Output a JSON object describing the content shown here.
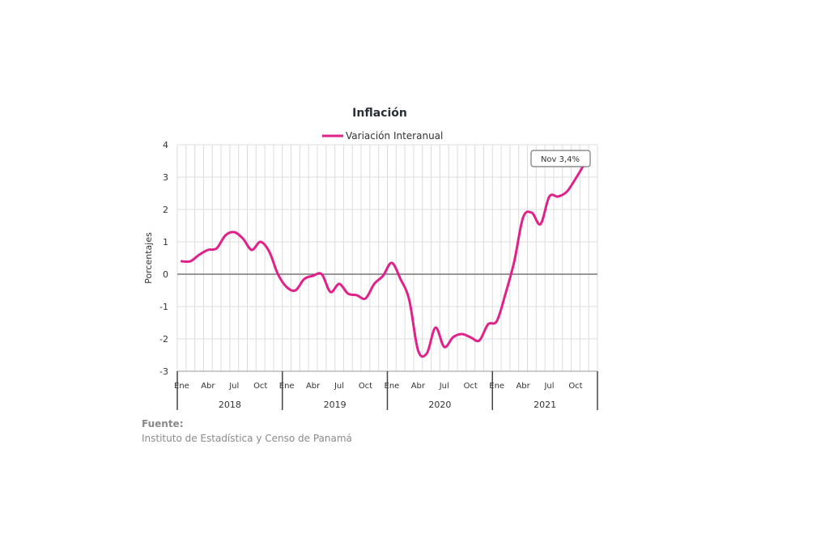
{
  "chart_data": {
    "type": "line",
    "title": "Inflación",
    "ylabel": "Porcentajes",
    "ylim": [
      -3,
      4
    ],
    "yticks": [
      4,
      3,
      2,
      1,
      0,
      -1,
      -2,
      -3
    ],
    "grid": true,
    "legend_position": "top-center",
    "x_month_labels": [
      "Ene",
      "Abr",
      "Jul",
      "Oct"
    ],
    "years": [
      "2018",
      "2019",
      "2020",
      "2021"
    ],
    "series": [
      {
        "name": "Variación Interanual",
        "color": "#e0218a",
        "x": [
          "2018-01",
          "2018-02",
          "2018-03",
          "2018-04",
          "2018-05",
          "2018-06",
          "2018-07",
          "2018-08",
          "2018-09",
          "2018-10",
          "2018-11",
          "2018-12",
          "2019-01",
          "2019-02",
          "2019-03",
          "2019-04",
          "2019-05",
          "2019-06",
          "2019-07",
          "2019-08",
          "2019-09",
          "2019-10",
          "2019-11",
          "2019-12",
          "2020-01",
          "2020-02",
          "2020-03",
          "2020-04",
          "2020-05",
          "2020-06",
          "2020-07",
          "2020-08",
          "2020-09",
          "2020-10",
          "2020-11",
          "2020-12",
          "2021-01",
          "2021-02",
          "2021-03",
          "2021-04",
          "2021-05",
          "2021-06",
          "2021-07",
          "2021-08",
          "2021-09",
          "2021-10",
          "2021-11"
        ],
        "values": [
          0.4,
          0.4,
          0.6,
          0.75,
          0.8,
          1.2,
          1.3,
          1.1,
          0.75,
          1.0,
          0.7,
          0.0,
          -0.4,
          -0.5,
          -0.15,
          -0.05,
          0.0,
          -0.55,
          -0.3,
          -0.6,
          -0.65,
          -0.75,
          -0.3,
          -0.05,
          0.35,
          -0.15,
          -0.8,
          -2.35,
          -2.45,
          -1.65,
          -2.25,
          -1.95,
          -1.85,
          -1.95,
          -2.05,
          -1.55,
          -1.45,
          -0.6,
          0.4,
          1.75,
          1.9,
          1.55,
          2.4,
          2.4,
          2.55,
          2.95,
          3.4
        ]
      }
    ],
    "annotation": {
      "text": "Nov 3,4%"
    }
  },
  "source": {
    "label": "Fuente:",
    "text": "Instituto de Estadística y Censo de Panamá"
  }
}
